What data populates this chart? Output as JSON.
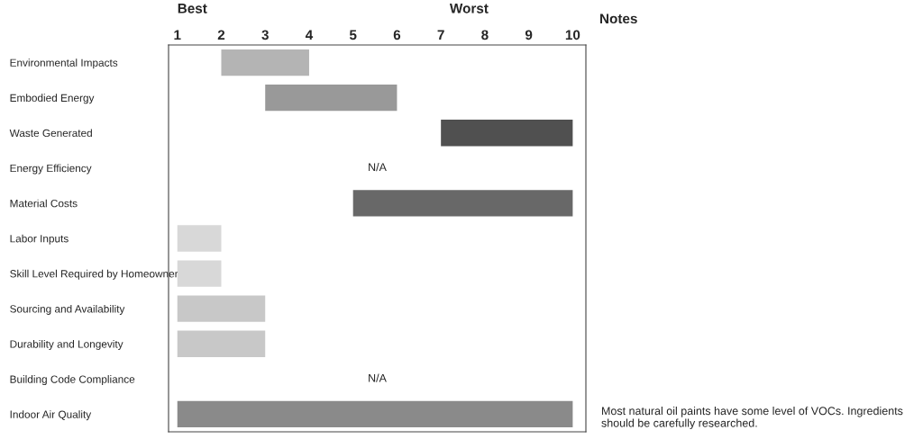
{
  "chart_data": {
    "type": "bar",
    "orientation": "horizontal",
    "categories": [
      "Environmental Impacts",
      "Embodied Energy",
      "Waste Generated",
      "Energy Efficiency",
      "Material Costs",
      "Labor Inputs",
      "Skill Level Required by Homeowner",
      "Sourcing and Availability",
      "Durability and Longevity",
      "Building Code Compliance",
      "Indoor Air Quality"
    ],
    "base": [
      2,
      3,
      7,
      null,
      5,
      1,
      1,
      1,
      1,
      null,
      1
    ],
    "values": [
      2,
      3,
      3,
      null,
      5,
      1,
      1,
      2,
      2,
      null,
      9
    ],
    "colors": [
      "#b4b4b4",
      "#999999",
      "#505050",
      "#888888",
      "#686868",
      "#d8d8d8",
      "#d8d8d8",
      "#c8c8c8",
      "#c8c8c8",
      "#888888",
      "#8a8a8a"
    ],
    "value_labels": [
      null,
      null,
      null,
      "N/A",
      null,
      null,
      null,
      null,
      null,
      "N/A",
      null
    ],
    "xlim": [
      0.8,
      10.3
    ],
    "xticks": [
      1,
      2,
      3,
      4,
      5,
      6,
      7,
      8,
      9,
      10
    ],
    "annotations": [
      "Best",
      "Worst",
      "Notes",
      "Most natural oil paints have some level of VOCs. Ingredients should be carefully researched."
    ],
    "grid": false,
    "legend": false
  }
}
